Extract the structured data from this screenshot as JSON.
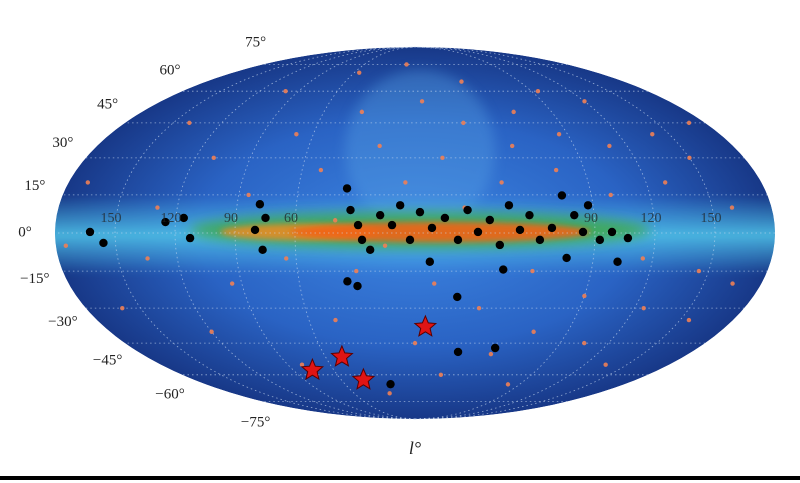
{
  "chart_data": {
    "type": "skymap",
    "projection": "mollweide",
    "xlabel": "l°",
    "xlim": [
      180,
      -180
    ],
    "ylim": [
      -90,
      90
    ],
    "grid": true,
    "xticks": [
      {
        "value": 150,
        "label": "150"
      },
      {
        "value": 120,
        "label": "120"
      },
      {
        "value": 90,
        "label": "90"
      },
      {
        "value": 60,
        "label": "60"
      },
      {
        "value": -90,
        "label": "90"
      },
      {
        "value": -120,
        "label": "120"
      },
      {
        "value": -150,
        "label": "150"
      }
    ],
    "yticks": [
      {
        "value": 75,
        "label": "75°"
      },
      {
        "value": 60,
        "label": "60°"
      },
      {
        "value": 45,
        "label": "45°"
      },
      {
        "value": 30,
        "label": "30°"
      },
      {
        "value": 15,
        "label": "15°"
      },
      {
        "value": 0,
        "label": "0°"
      },
      {
        "value": -15,
        "label": "−15°"
      },
      {
        "value": -30,
        "label": "−30°"
      },
      {
        "value": -45,
        "label": "−45°"
      },
      {
        "value": -60,
        "label": "−60°"
      },
      {
        "value": -75,
        "label": "−75°"
      }
    ],
    "series": [
      {
        "color": "#ee8055",
        "marker": "dot",
        "x": [
          170,
          160,
          140,
          135,
          130,
          120,
          110,
          100,
          95,
          85,
          80,
          70,
          65,
          55,
          50,
          45,
          40,
          35,
          30,
          25,
          20,
          15,
          10,
          5,
          0,
          -5,
          -10,
          -15,
          -20,
          -25,
          -30,
          -35,
          -40,
          -45,
          -50,
          -55,
          -60,
          -65,
          -70,
          -75,
          -80,
          -85,
          -90,
          -95,
          -100,
          -105,
          -110,
          -115,
          -120,
          -125,
          -130,
          -135,
          -140,
          -145,
          -150,
          -155,
          -160,
          -165,
          -170,
          175
        ],
        "values": [
          20,
          -30,
          45,
          -10,
          10,
          -40,
          30,
          60,
          -20,
          15,
          -55,
          40,
          -10,
          70,
          25,
          -35,
          5,
          50,
          -15,
          -70,
          35,
          -5,
          75,
          20,
          -45,
          55,
          -20,
          30,
          -60,
          10,
          45,
          -30,
          65,
          20,
          -50,
          35,
          -15,
          50,
          -40,
          25,
          -65,
          40,
          -25,
          60,
          15,
          -45,
          35,
          -10,
          55,
          -30,
          20,
          -55,
          40,
          -15,
          30,
          -35,
          10,
          -20,
          45,
          -5
        ]
      },
      {
        "color": "#000000",
        "marker": "disc",
        "x": [
          162.5,
          156,
          125,
          116,
          112.5,
          78.5,
          75,
          80,
          76.5,
          35,
          32.5,
          28.5,
          26.5,
          22.5,
          17.5,
          11.5,
          7.5,
          2.5,
          -2.5,
          -8.5,
          -15,
          -21.5,
          -26.5,
          -31.5,
          -37.5,
          -42.5,
          -47.5,
          -52.5,
          -57.5,
          -62.5,
          -68.5,
          -75,
          -80,
          -84,
          -87.5,
          -92.5,
          -76.5,
          -98.5,
          -106.5,
          -102.5,
          35,
          30,
          -22.5,
          -28,
          -51,
          21,
          -45,
          -7.5
        ],
        "values": [
          0.4,
          -3.9,
          4.3,
          5.9,
          -2,
          11.3,
          5.9,
          1.2,
          -6.6,
          17.6,
          9,
          3.1,
          -2.7,
          -6.6,
          7,
          3.1,
          10.9,
          -2.7,
          8.2,
          2,
          5.9,
          -2.7,
          9,
          0.4,
          5.1,
          -4.7,
          10.9,
          1.2,
          7,
          -2.7,
          2,
          14.8,
          7,
          0.4,
          10.9,
          -2.7,
          -9.8,
          0.4,
          -2,
          -11.3,
          -19.1,
          -21,
          -25.4,
          -49,
          -47.2,
          -64.9,
          -14.4,
          -11.3
        ]
      },
      {
        "color": "#e01414",
        "marker": "star",
        "x": [
          -6,
          76,
          49,
          42
        ],
        "values": [
          -37.9,
          -57.7,
          -51.3,
          -62.6
        ]
      }
    ]
  }
}
